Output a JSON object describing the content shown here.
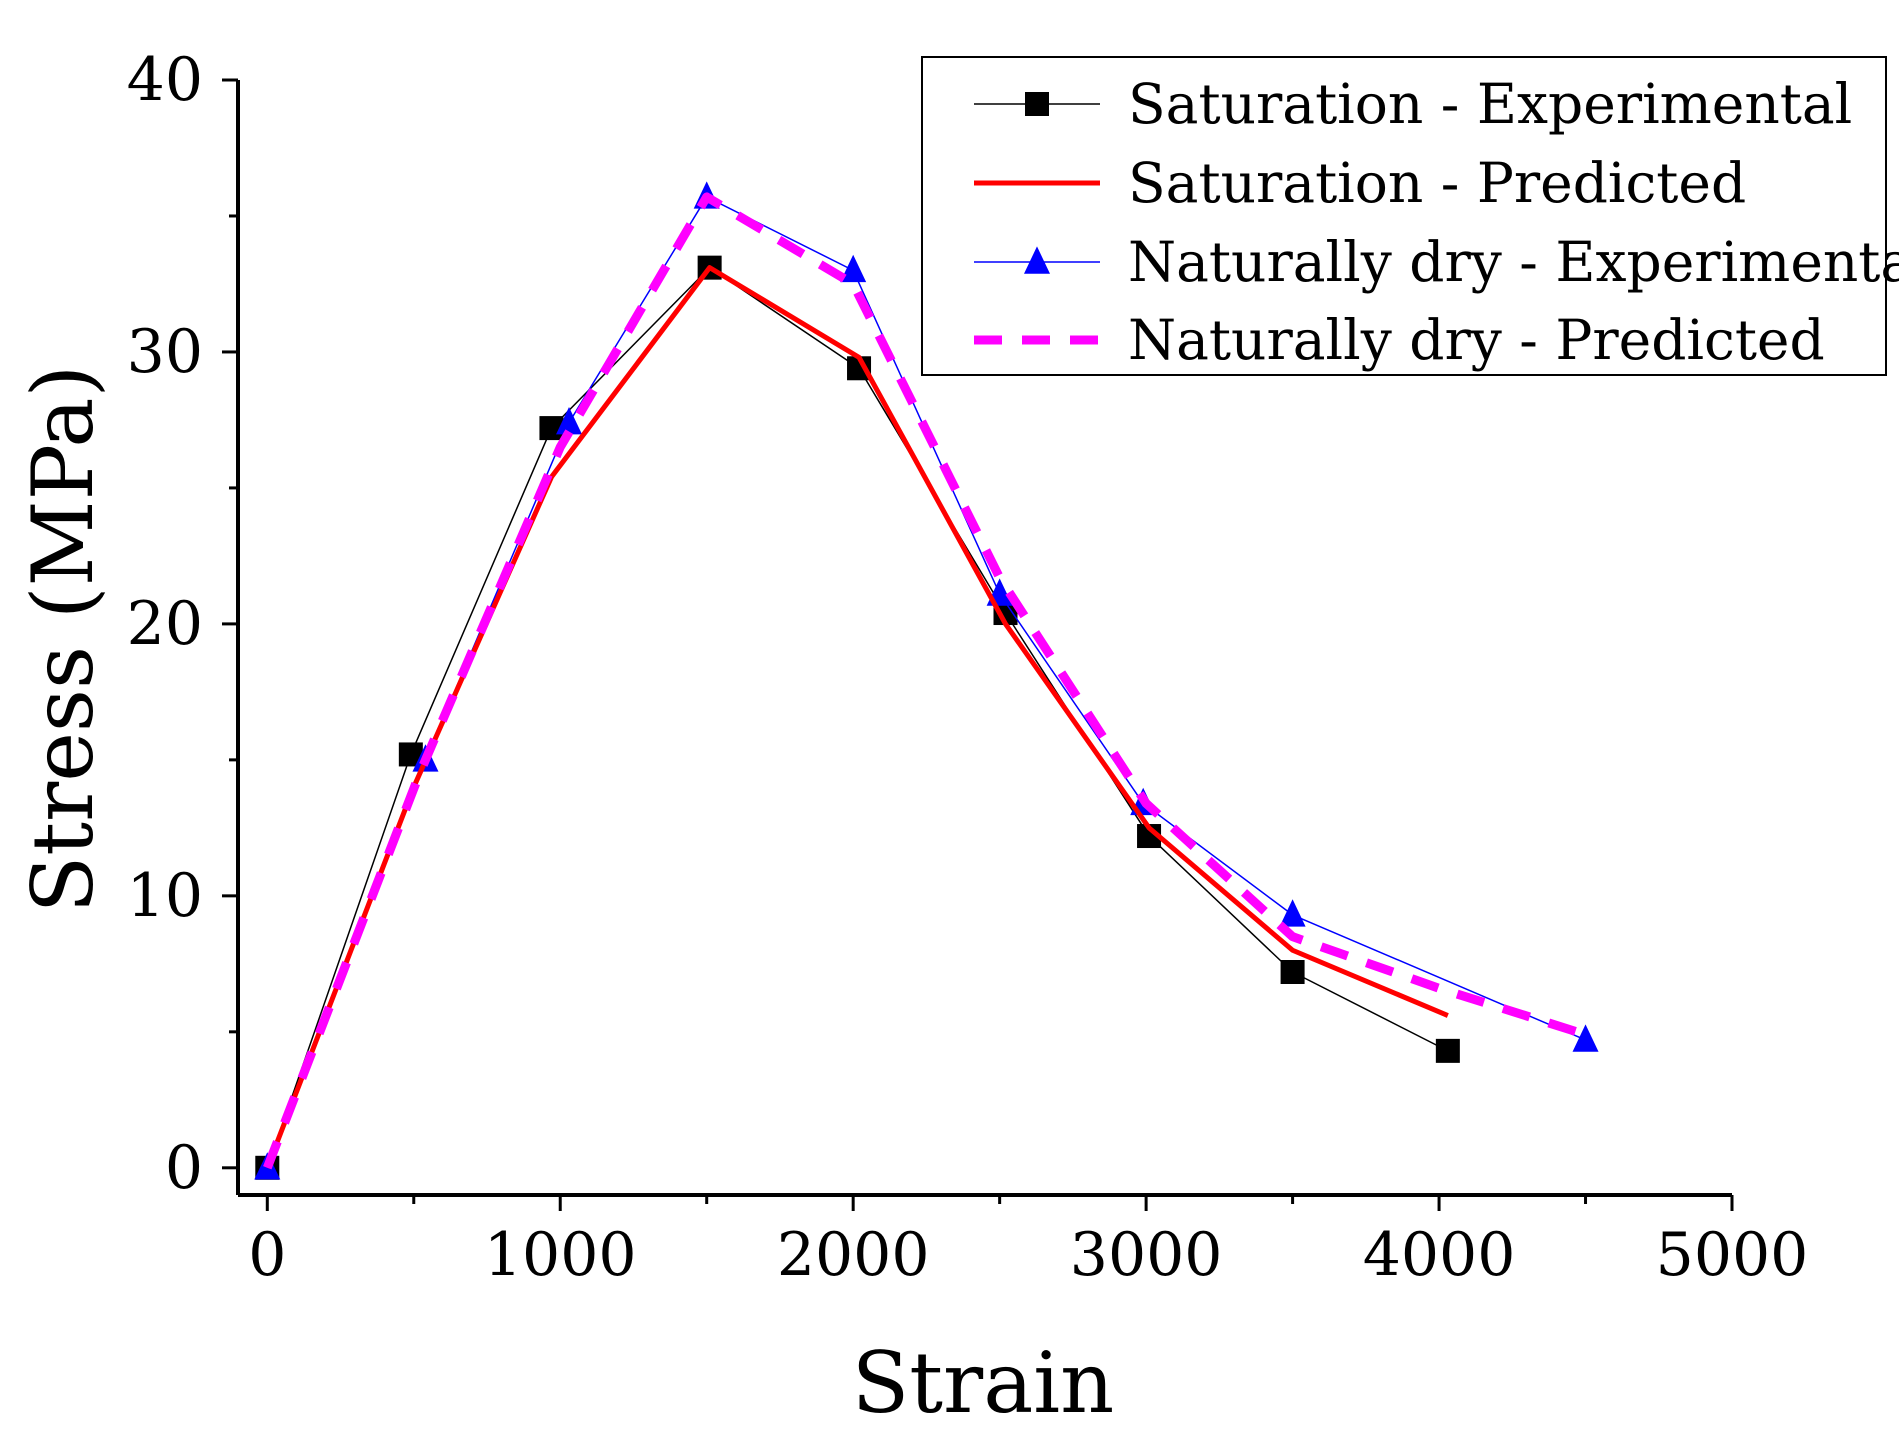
{
  "chart_data": {
    "type": "line",
    "title": "",
    "xlabel": "Strain",
    "ylabel": "Stress (MPa)",
    "xlim": [
      -100,
      5000
    ],
    "ylim": [
      -1,
      40
    ],
    "xticks": [
      0,
      1000,
      2000,
      3000,
      4000,
      5000
    ],
    "yticks": [
      0,
      10,
      20,
      30,
      40
    ],
    "xtick_labels": [
      "0",
      "1000",
      "2000",
      "3000",
      "4000",
      "5000"
    ],
    "ytick_labels": [
      "0",
      "10",
      "20",
      "30",
      "40"
    ],
    "grid": false,
    "legend_position": "top-right",
    "series": [
      {
        "name": "Saturation - Experimental",
        "color": "#000000",
        "marker": "square",
        "line_style": "thin-solid",
        "x": [
          0,
          490,
          970,
          1510,
          2020,
          2520,
          3010,
          3500,
          4030
        ],
        "y": [
          0,
          15.2,
          27.2,
          33.1,
          29.4,
          20.4,
          12.2,
          7.2,
          4.3
        ]
      },
      {
        "name": "Saturation - Predicted",
        "color": "#ff0000",
        "marker": "none",
        "line_style": "thick-solid",
        "x": [
          0,
          500,
          970,
          1510,
          2020,
          2520,
          3010,
          3500,
          4030
        ],
        "y": [
          0,
          14.0,
          25.4,
          33.1,
          29.8,
          20.0,
          12.5,
          8.0,
          5.6
        ]
      },
      {
        "name": "Naturally dry - Experimental",
        "color": "#0000ff",
        "marker": "triangle",
        "line_style": "thin-solid",
        "x": [
          0,
          540,
          1030,
          1500,
          2000,
          2500,
          2990,
          3500,
          4500
        ],
        "y": [
          0,
          15.0,
          27.4,
          35.7,
          33.0,
          21.1,
          13.4,
          9.3,
          4.7
        ]
      },
      {
        "name": "Naturally dry - Predicted",
        "color": "#ff00ff",
        "marker": "none",
        "line_style": "thick-dashed",
        "x": [
          0,
          520,
          1000,
          1500,
          2000,
          2500,
          3000,
          3500,
          4000,
          4500
        ],
        "y": [
          0,
          14.5,
          26.5,
          35.7,
          32.5,
          21.7,
          13.4,
          8.5,
          6.6,
          4.9
        ]
      }
    ]
  }
}
